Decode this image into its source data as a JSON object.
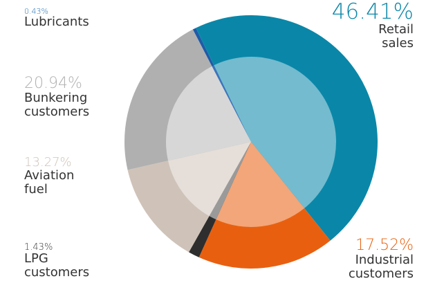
{
  "chart_data": {
    "type": "pie",
    "categories": [
      "Lubricants",
      "Retail sales",
      "Industrial customers",
      "LPG customers",
      "Aviation fuel",
      "Bunkering customers"
    ],
    "values": [
      0.43,
      46.41,
      17.52,
      1.43,
      13.27,
      20.94
    ],
    "value_labels": [
      "0.43%",
      "46.41%",
      "17.52%",
      "1.43%",
      "13.27%",
      "20.94%"
    ],
    "colors": [
      "#1f5ba8",
      "#0a87a8",
      "#e8600f",
      "#2e2e2e",
      "#cfc3b9",
      "#b0b0b0"
    ],
    "inner_colors": [
      "#3d74bf",
      "#74bbcf",
      "#f2a679",
      "#9a9a9a",
      "#e6dfd9",
      "#d7d7d7"
    ],
    "label_colors": [
      "#1f6fb5",
      "#0a87a8",
      "#e8600f",
      "#333333",
      "#cfc3b9",
      "#b0b0b0"
    ]
  }
}
